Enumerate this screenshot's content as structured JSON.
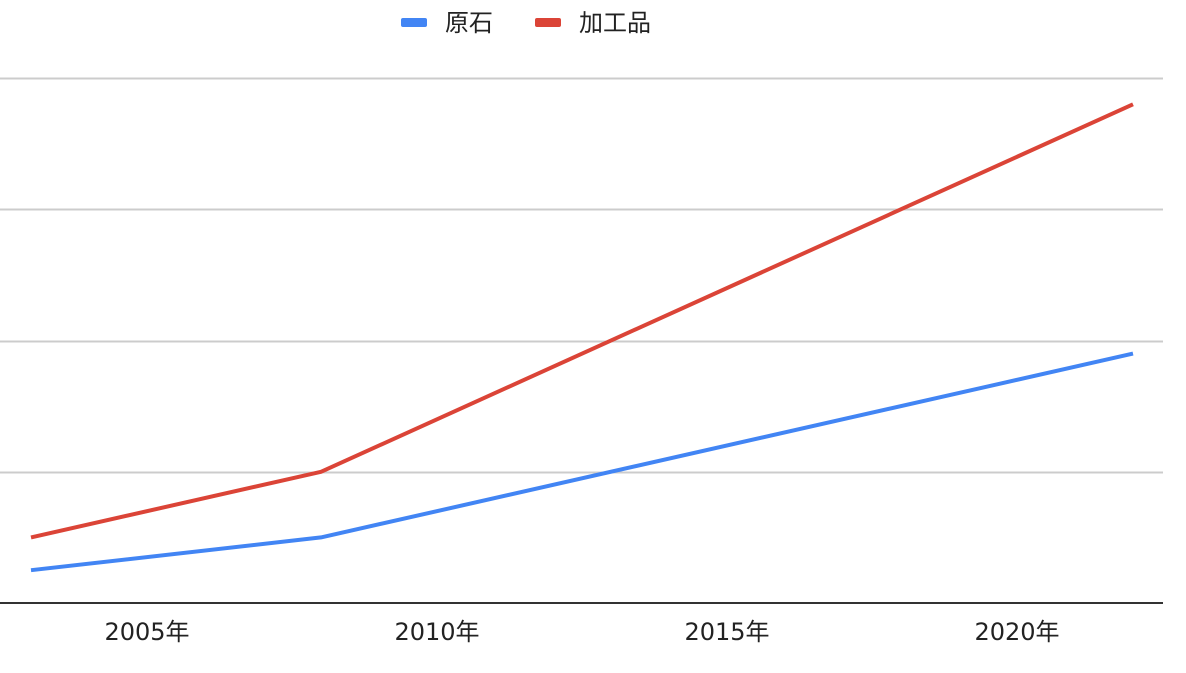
{
  "chart_data": {
    "type": "line",
    "title": "",
    "xlabel": "",
    "ylabel": "",
    "x": [
      2003,
      2008,
      2022
    ],
    "x_ticks": [
      {
        "value": 2005,
        "label": "2005年"
      },
      {
        "value": 2010,
        "label": "2010年"
      },
      {
        "value": 2015,
        "label": "2015年"
      },
      {
        "value": 2020,
        "label": "2020年"
      }
    ],
    "xlim": [
      2002.5,
      2023
    ],
    "ylim": [
      0,
      4
    ],
    "y_gridlines": [
      1,
      2,
      3,
      4
    ],
    "y_tick_labels_visible": false,
    "grid": true,
    "legend_position": "top-center",
    "series": [
      {
        "name": "原石",
        "color": "#4285f4",
        "values": [
          0.25,
          0.5,
          1.9
        ]
      },
      {
        "name": "加工品",
        "color": "#db4437",
        "values": [
          0.5,
          1.0,
          3.8
        ]
      }
    ]
  }
}
